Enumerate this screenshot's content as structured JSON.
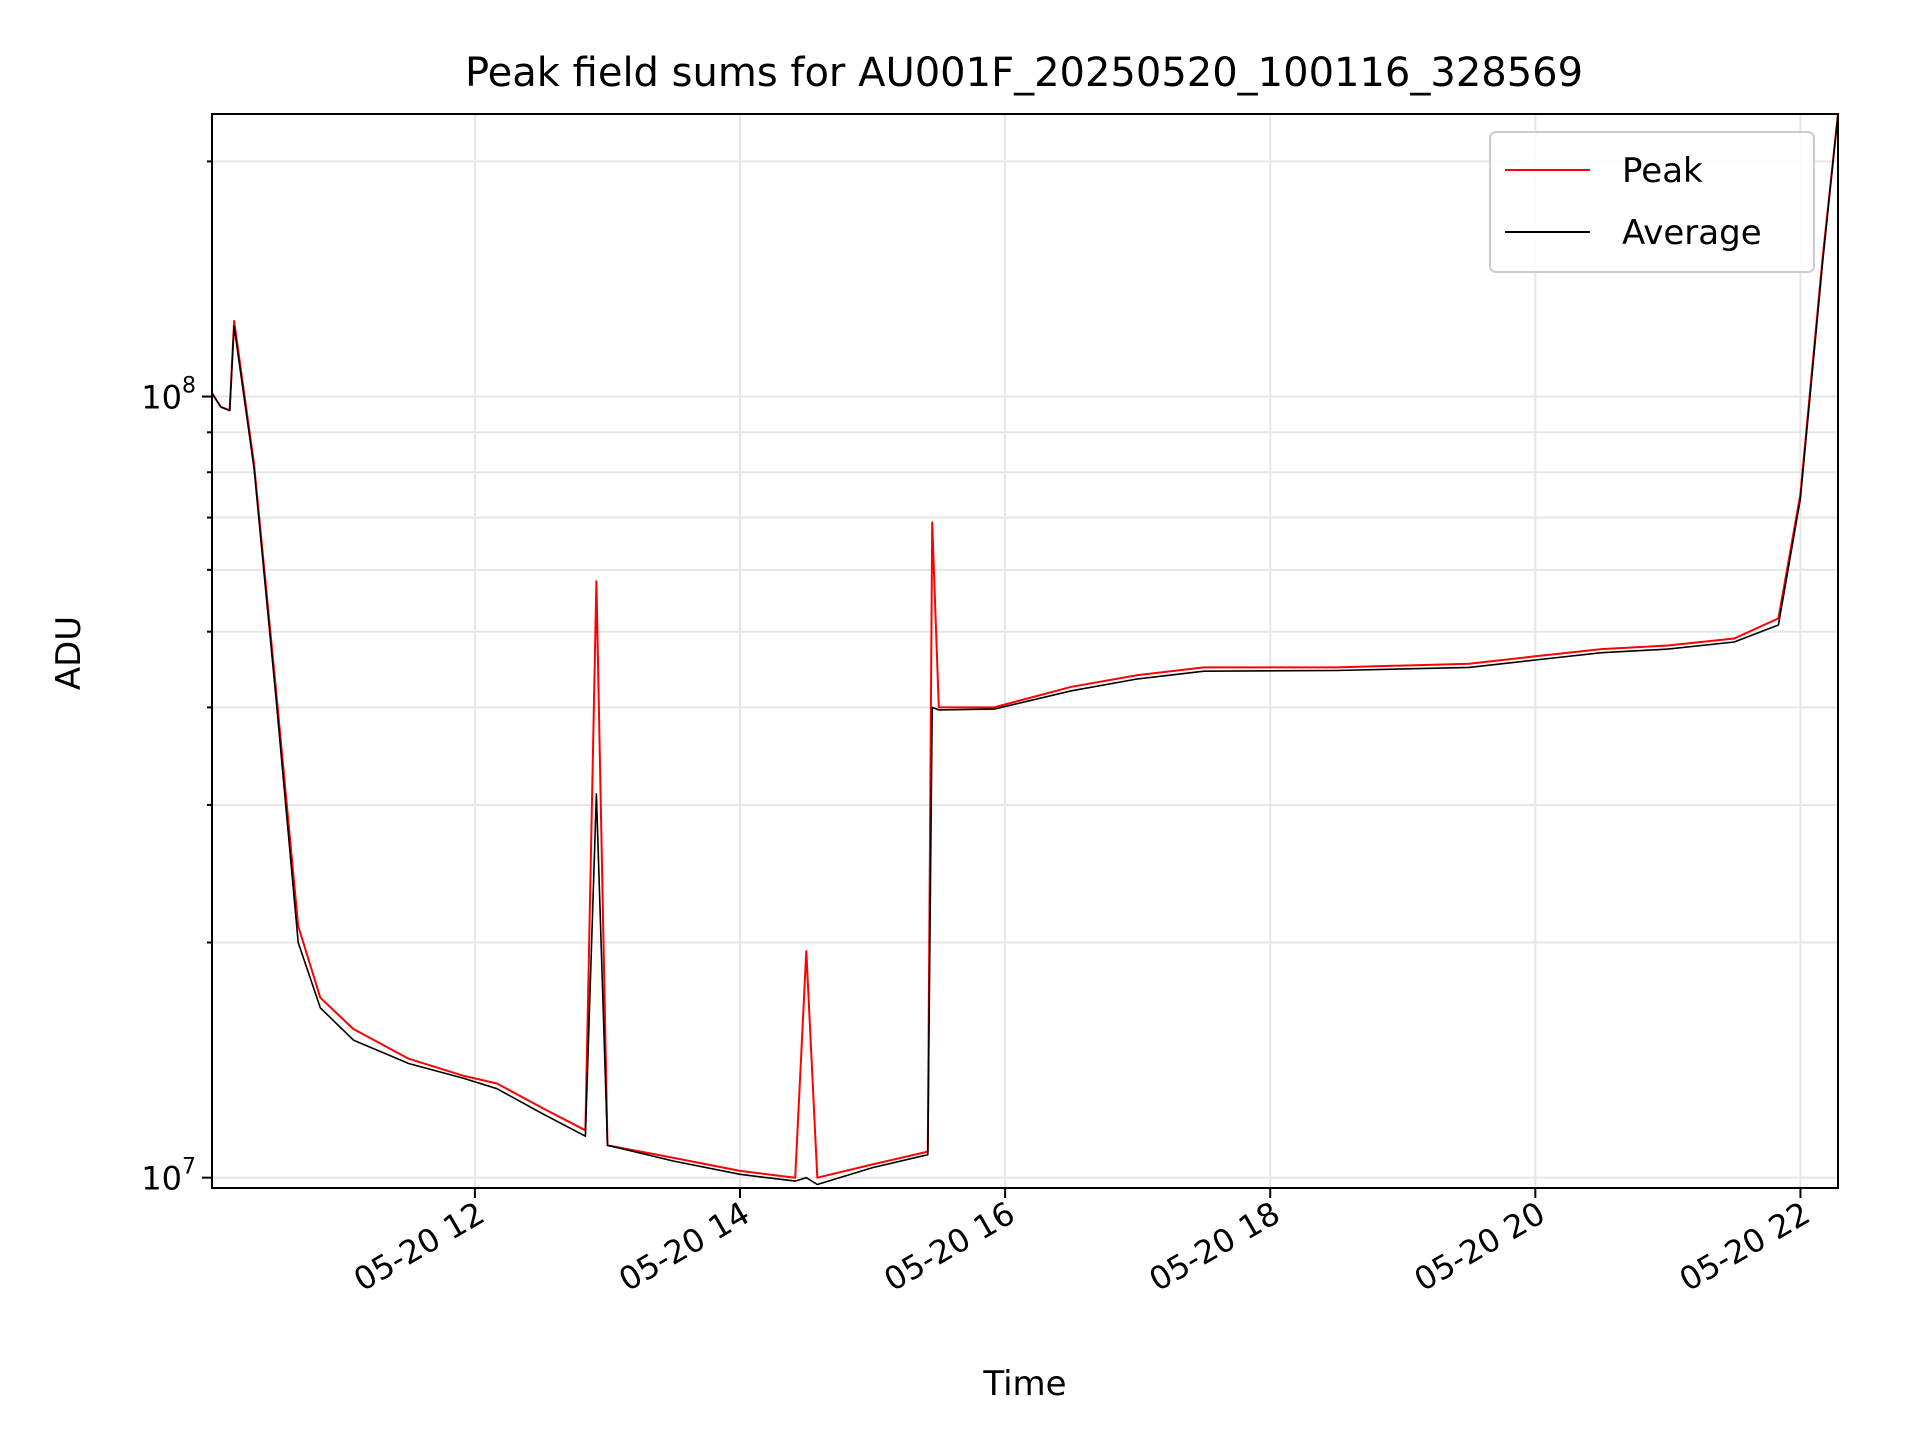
{
  "chart_data": {
    "type": "line",
    "title": "Peak field sums for AU001F_20250520_100116_328569",
    "xlabel": "Time",
    "ylabel": "ADU",
    "x_axis": {
      "type": "time",
      "range": [
        "2025-05-20T10:01",
        "2025-05-20T22:17"
      ],
      "ticks": [
        {
          "value": "2025-05-20T12:00",
          "label": "05-20 12"
        },
        {
          "value": "2025-05-20T14:00",
          "label": "05-20 14"
        },
        {
          "value": "2025-05-20T16:00",
          "label": "05-20 16"
        },
        {
          "value": "2025-05-20T18:00",
          "label": "05-20 18"
        },
        {
          "value": "2025-05-20T20:00",
          "label": "05-20 20"
        },
        {
          "value": "2025-05-20T22:00",
          "label": "05-20 22"
        }
      ]
    },
    "y_axis": {
      "scale": "log",
      "range": [
        9700000,
        230000000
      ],
      "ticks": [
        {
          "value": 10000000,
          "base": "10",
          "exp": "7"
        },
        {
          "value": 100000000,
          "base": "10",
          "exp": "8"
        }
      ]
    },
    "grid": true,
    "legend": {
      "position": "top-right",
      "entries": [
        "Peak",
        "Average"
      ]
    },
    "series": [
      {
        "name": "Peak",
        "color": "#ff0000",
        "points": [
          [
            "2025-05-20T10:01",
            101000000
          ],
          [
            "2025-05-20T10:05",
            97000000
          ],
          [
            "2025-05-20T10:09",
            96000000
          ],
          [
            "2025-05-20T10:11",
            125000000
          ],
          [
            "2025-05-20T10:20",
            82000000
          ],
          [
            "2025-05-20T10:30",
            42000000
          ],
          [
            "2025-05-20T10:40",
            21000000
          ],
          [
            "2025-05-20T10:50",
            17000000
          ],
          [
            "2025-05-20T11:05",
            15500000
          ],
          [
            "2025-05-20T11:30",
            14200000
          ],
          [
            "2025-05-20T11:55",
            13500000
          ],
          [
            "2025-05-20T12:10",
            13200000
          ],
          [
            "2025-05-20T12:30",
            12300000
          ],
          [
            "2025-05-20T12:50",
            11500000
          ],
          [
            "2025-05-20T12:55",
            58000000
          ],
          [
            "2025-05-20T13:00",
            11000000
          ],
          [
            "2025-05-20T13:30",
            10600000
          ],
          [
            "2025-05-20T14:00",
            10200000
          ],
          [
            "2025-05-20T14:25",
            10000000
          ],
          [
            "2025-05-20T14:30",
            19500000
          ],
          [
            "2025-05-20T14:35",
            10000000
          ],
          [
            "2025-05-20T15:00",
            10400000
          ],
          [
            "2025-05-20T15:25",
            10800000
          ],
          [
            "2025-05-20T15:27",
            69000000
          ],
          [
            "2025-05-20T15:30",
            40000000
          ],
          [
            "2025-05-20T15:55",
            40000000
          ],
          [
            "2025-05-20T16:30",
            42500000
          ],
          [
            "2025-05-20T17:00",
            44000000
          ],
          [
            "2025-05-20T17:30",
            45000000
          ],
          [
            "2025-05-20T18:30",
            45000000
          ],
          [
            "2025-05-20T19:30",
            45500000
          ],
          [
            "2025-05-20T20:00",
            46500000
          ],
          [
            "2025-05-20T20:30",
            47500000
          ],
          [
            "2025-05-20T21:00",
            48000000
          ],
          [
            "2025-05-20T21:30",
            49000000
          ],
          [
            "2025-05-20T21:50",
            52000000
          ],
          [
            "2025-05-20T22:00",
            75000000
          ],
          [
            "2025-05-20T22:10",
            150000000
          ],
          [
            "2025-05-20T22:17",
            230000000
          ]
        ]
      },
      {
        "name": "Average",
        "color": "#000000",
        "points": [
          [
            "2025-05-20T10:01",
            101000000
          ],
          [
            "2025-05-20T10:05",
            97000000
          ],
          [
            "2025-05-20T10:09",
            96000000
          ],
          [
            "2025-05-20T10:11",
            123000000
          ],
          [
            "2025-05-20T10:20",
            81000000
          ],
          [
            "2025-05-20T10:30",
            41000000
          ],
          [
            "2025-05-20T10:40",
            20000000
          ],
          [
            "2025-05-20T10:50",
            16500000
          ],
          [
            "2025-05-20T11:05",
            15000000
          ],
          [
            "2025-05-20T11:30",
            14000000
          ],
          [
            "2025-05-20T11:55",
            13400000
          ],
          [
            "2025-05-20T12:10",
            13000000
          ],
          [
            "2025-05-20T12:30",
            12100000
          ],
          [
            "2025-05-20T12:50",
            11300000
          ],
          [
            "2025-05-20T12:55",
            31000000
          ],
          [
            "2025-05-20T13:00",
            11000000
          ],
          [
            "2025-05-20T13:30",
            10500000
          ],
          [
            "2025-05-20T14:00",
            10100000
          ],
          [
            "2025-05-20T14:25",
            9900000
          ],
          [
            "2025-05-20T14:30",
            10000000
          ],
          [
            "2025-05-20T14:35",
            9800000
          ],
          [
            "2025-05-20T15:00",
            10300000
          ],
          [
            "2025-05-20T15:25",
            10700000
          ],
          [
            "2025-05-20T15:27",
            40000000
          ],
          [
            "2025-05-20T15:30",
            39700000
          ],
          [
            "2025-05-20T15:55",
            39800000
          ],
          [
            "2025-05-20T16:30",
            42000000
          ],
          [
            "2025-05-20T17:00",
            43500000
          ],
          [
            "2025-05-20T17:30",
            44500000
          ],
          [
            "2025-05-20T18:30",
            44600000
          ],
          [
            "2025-05-20T19:30",
            45000000
          ],
          [
            "2025-05-20T20:00",
            46000000
          ],
          [
            "2025-05-20T20:30",
            47000000
          ],
          [
            "2025-05-20T21:00",
            47500000
          ],
          [
            "2025-05-20T21:30",
            48500000
          ],
          [
            "2025-05-20T21:50",
            51000000
          ],
          [
            "2025-05-20T22:00",
            74000000
          ],
          [
            "2025-05-20T22:10",
            148000000
          ],
          [
            "2025-05-20T22:17",
            230000000
          ]
        ]
      }
    ]
  }
}
